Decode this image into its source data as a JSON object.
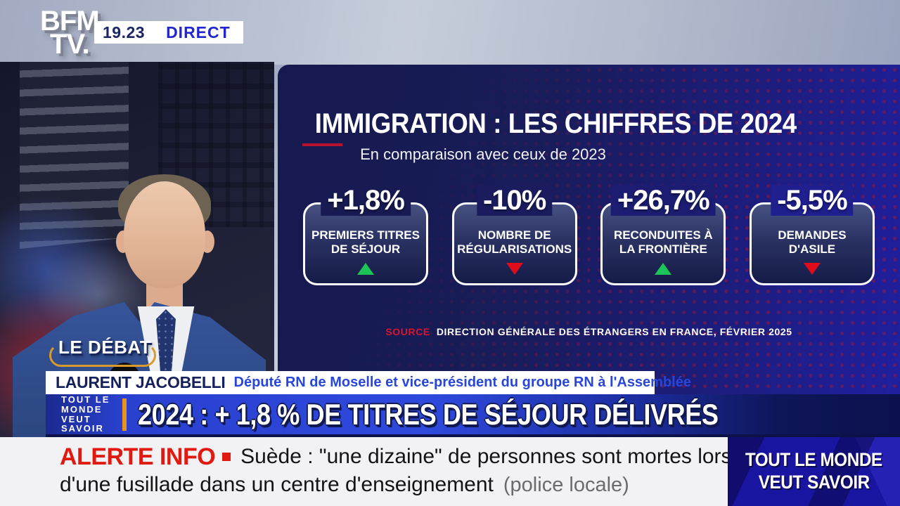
{
  "channel": {
    "logo_top": "BFM",
    "logo_bottom": "TV.",
    "time": "19.23",
    "live_label": "DIRECT"
  },
  "program": {
    "badge": "LE DÉBAT",
    "logo_stack": [
      "TOUT LE",
      "MONDE",
      "VEUT",
      "SAVOIR"
    ],
    "corner_box_lines": [
      "TOUT LE MONDE",
      "VEUT SAVOIR"
    ]
  },
  "infographic": {
    "title": "IMMIGRATION : LES CHIFFRES DE 2024",
    "subtitle": "En comparaison avec ceux de 2023",
    "cards": [
      {
        "value": "+1,8%",
        "label": "PREMIERS TITRES DE SÉJOUR",
        "trend": "up"
      },
      {
        "value": "-10%",
        "label": "NOMBRE DE RÉGULARISATIONS",
        "trend": "down"
      },
      {
        "value": "+26,7%",
        "label": "RECONDUITES À LA FRONTIÈRE",
        "trend": "up"
      },
      {
        "value": "-5,5%",
        "label": "DEMANDES D'ASILE",
        "trend": "down"
      }
    ],
    "source_label": "SOURCE",
    "source_text": "DIRECTION GÉNÉRALE DES ÉTRANGERS EN FRANCE, FÉVRIER 2025"
  },
  "speaker": {
    "name": "LAURENT JACOBELLI",
    "role": "Député RN de Moselle et vice-président du groupe RN à l'Assemblée"
  },
  "headline": {
    "text": "2024 : + 1,8 % DE TITRES DE SÉJOUR DÉLIVRÉS"
  },
  "alert": {
    "label": "ALERTE INFO",
    "line1": "Suède : \"une dizaine\" de personnes sont mortes lors",
    "line2": "d'une fusillade dans un centre d'enseignement",
    "attribution": "(police locale)"
  },
  "colors": {
    "panel_navy": "#161a4e",
    "panel_blue_right": "#201f9e",
    "dot_red": "#a51638",
    "accent_red_dash": "#b81230",
    "headline_blue": "#2e49dd",
    "live_blue": "#2126cf",
    "time_navy": "#1c2468",
    "speaker_role_blue": "#2946da",
    "up_green": "#1dc558",
    "down_red": "#e00c1c",
    "alert_red": "#e01a10",
    "badge_gold": "#d89a2c",
    "orange_bar": "#e8941f",
    "corner_box_blue": "#1a15a0"
  },
  "chart_data": {
    "type": "table",
    "title": "IMMIGRATION : LES CHIFFRES DE 2024",
    "subtitle": "En comparaison avec ceux de 2023",
    "categories": [
      "Premiers titres de séjour",
      "Nombre de régularisations",
      "Reconduites à la frontière",
      "Demandes d'asile"
    ],
    "values_percent_change": [
      1.8,
      -10,
      26.7,
      -5.5
    ],
    "trends": [
      "up",
      "down",
      "up",
      "down"
    ],
    "source": "Direction générale des étrangers en France, février 2025"
  }
}
